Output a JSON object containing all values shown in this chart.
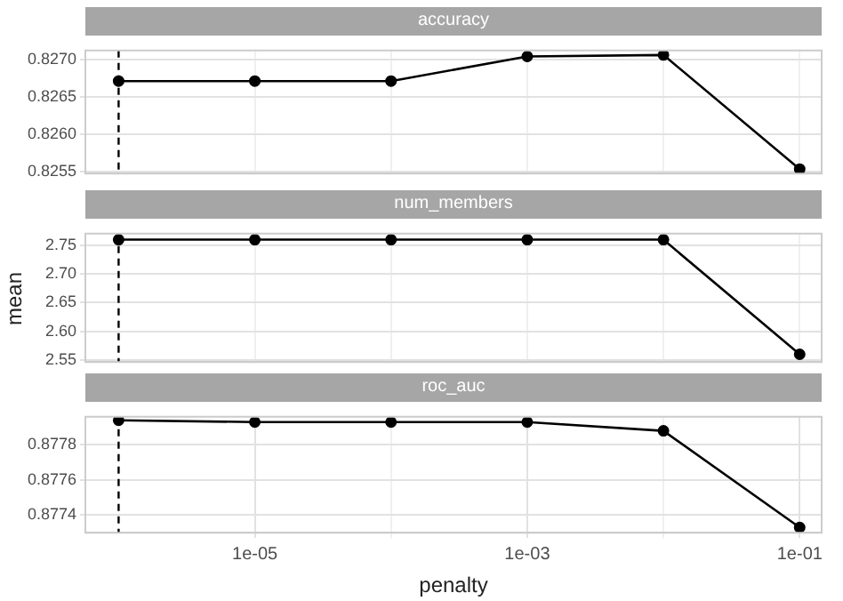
{
  "chart_data": [
    {
      "type": "line",
      "title": "accuracy",
      "x": [
        1e-06,
        1e-05,
        0.0001,
        0.001,
        0.01,
        0.1
      ],
      "series": [
        {
          "color": "#000000",
          "values": [
            0.82671,
            0.82671,
            0.82671,
            0.82704,
            0.82706,
            0.82553
          ]
        }
      ],
      "log": "x",
      "xlim": [
        5.7e-07,
        0.145
      ],
      "xticks": [
        {
          "value": 1e-05,
          "label": null
        },
        {
          "value": 0.0001,
          "label": null
        },
        {
          "value": 0.001,
          "label": null
        },
        {
          "value": 0.01,
          "label": null
        },
        {
          "value": 0.1,
          "label": null
        }
      ],
      "ylim": [
        0.82547,
        0.82712
      ],
      "yticks": [
        {
          "value": 0.8255,
          "label": "0.8255"
        },
        {
          "value": 0.826,
          "label": "0.8260"
        },
        {
          "value": 0.8265,
          "label": "0.8265"
        },
        {
          "value": 0.827,
          "label": "0.8270"
        }
      ],
      "ref_lines": [
        {
          "axis": "x",
          "value": 1e-06,
          "line_style": "dashed",
          "color": "#000000"
        }
      ],
      "tick_labels": "y",
      "grid": true,
      "legend": false,
      "marker": "circle",
      "line_style": "solid"
    },
    {
      "type": "line",
      "title": "num_members",
      "ylabel": "mean",
      "x": [
        1e-06,
        1e-05,
        0.0001,
        0.001,
        0.01,
        0.1
      ],
      "series": [
        {
          "color": "#000000",
          "values": [
            2.76,
            2.76,
            2.76,
            2.76,
            2.76,
            2.56
          ]
        }
      ],
      "log": "x",
      "xlim": [
        5.7e-07,
        0.145
      ],
      "xticks": [
        {
          "value": 1e-05,
          "label": null
        },
        {
          "value": 0.0001,
          "label": null
        },
        {
          "value": 0.001,
          "label": null
        },
        {
          "value": 0.01,
          "label": null
        },
        {
          "value": 0.1,
          "label": null
        }
      ],
      "ylim": [
        2.5465,
        2.7705
      ],
      "yticks": [
        {
          "value": 2.55,
          "label": "2.55"
        },
        {
          "value": 2.6,
          "label": "2.60"
        },
        {
          "value": 2.65,
          "label": "2.65"
        },
        {
          "value": 2.7,
          "label": "2.70"
        },
        {
          "value": 2.75,
          "label": "2.75"
        }
      ],
      "ref_lines": [
        {
          "axis": "x",
          "value": 1e-06,
          "line_style": "dashed",
          "color": "#000000"
        }
      ],
      "tick_labels": "y",
      "grid": true,
      "legend": false,
      "marker": "circle",
      "line_style": "solid"
    },
    {
      "type": "line",
      "title": "roc_auc",
      "xlabel": "penalty",
      "x": [
        1e-06,
        1e-05,
        0.0001,
        0.001,
        0.01,
        0.1
      ],
      "series": [
        {
          "color": "#000000",
          "values": [
            0.87794,
            0.87793,
            0.87793,
            0.87793,
            0.87788,
            0.87733
          ]
        }
      ],
      "log": "x",
      "xlim": [
        5.7e-07,
        0.145
      ],
      "xticks": [
        {
          "value": 1e-05,
          "label": "1e-05"
        },
        {
          "value": 0.0001,
          "label": null
        },
        {
          "value": 0.001,
          "label": "1e-03"
        },
        {
          "value": 0.01,
          "label": null
        },
        {
          "value": 0.1,
          "label": "1e-01"
        }
      ],
      "ylim": [
        0.8773,
        0.87796
      ],
      "yticks": [
        {
          "value": 0.8774,
          "label": "0.8774"
        },
        {
          "value": 0.8776,
          "label": "0.8776"
        },
        {
          "value": 0.8778,
          "label": "0.8778"
        }
      ],
      "ref_lines": [
        {
          "axis": "x",
          "value": 1e-06,
          "line_style": "dashed",
          "color": "#000000"
        }
      ],
      "grid": true,
      "legend": false,
      "marker": "circle",
      "line_style": "solid"
    }
  ]
}
